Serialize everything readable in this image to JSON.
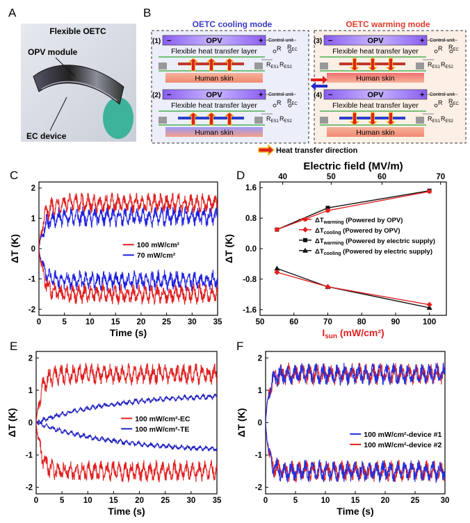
{
  "panels": {
    "A": {
      "letter": "A",
      "title": "Flexible OETC",
      "label_opv": "OPV module",
      "label_ec": "EC device"
    },
    "B": {
      "letter": "B",
      "cooling_title": "OETC cooling mode",
      "warming_title": "OETC warming mode",
      "opv": "OPV",
      "layer": "Flexible heat transfer layer",
      "skin": "Human skin",
      "control": "Control unit",
      "r_label": "R",
      "r_ec": "R",
      "r_ec_sub": "EC",
      "r_es1": "R",
      "r_es1_sub": "ES1",
      "r_es2": "R",
      "r_es2_sub": "ES2",
      "minus": "−",
      "plus": "+",
      "sub_labels": [
        "(1)",
        "(2)",
        "(3)",
        "(4)"
      ],
      "legend": "Heat transfer direction",
      "cooling_color": "#3a3ac8",
      "warming_color": "#e03a2a"
    },
    "C": {
      "letter": "C"
    },
    "D": {
      "letter": "D"
    },
    "E": {
      "letter": "E"
    },
    "F": {
      "letter": "F"
    }
  },
  "chart_data": [
    {
      "panel": "C",
      "type": "line",
      "xlabel": "Time (s)",
      "ylabel": "ΔT (K)",
      "xlim": [
        0,
        35
      ],
      "ylim": [
        -2.2,
        2.2
      ],
      "xticks": [
        0,
        5,
        10,
        15,
        20,
        25,
        30,
        35
      ],
      "yticks": [
        -2,
        -1,
        0,
        1,
        2
      ],
      "legend_position": "center-right",
      "series": [
        {
          "name": "100 mW/cm²",
          "color": "#e02020",
          "plateau": 1.5,
          "tau": 1.0
        },
        {
          "name": "70 mW/cm²",
          "color": "#2020e0",
          "plateau": 1.05,
          "tau": 1.0
        }
      ]
    },
    {
      "panel": "D",
      "type": "line",
      "xlabel": "Isun (mW/cm²)",
      "xlabel_main": "I",
      "xlabel_sub": "sun",
      "xlabel_rest": " (mW/cm²)",
      "top_xlabel": "Electric field (MV/m)",
      "ylabel": "ΔT (K)",
      "xlim": [
        50,
        105
      ],
      "ylim": [
        -1.75,
        1.75
      ],
      "xticks": [
        50,
        60,
        70,
        80,
        90,
        100
      ],
      "yticks": [
        -1.6,
        -0.8,
        0.0,
        0.8,
        1.6
      ],
      "yticklabels": [
        "-1.6",
        "-0.8",
        "0.0",
        "0.8",
        "1.6"
      ],
      "top_ticks": [
        40,
        50,
        60,
        70
      ],
      "top_tick_positions_in_isun": [
        56.7,
        71.0,
        86.0,
        103.3
      ],
      "legend_position": "center",
      "legend": [
        {
          "main": "ΔT",
          "sub": "warming",
          "rest": " (Powered by OPV)",
          "color": "#e02020",
          "marker": "circle"
        },
        {
          "main": "ΔT",
          "sub": "cooling",
          "rest": " (Powered by OPV)",
          "color": "#e02020",
          "marker": "diamond"
        },
        {
          "main": "ΔT",
          "sub": "warming",
          "rest": " (Powered by electric supply)",
          "color": "#111111",
          "marker": "square"
        },
        {
          "main": "ΔT",
          "sub": "cooling",
          "rest": " (Powered by electric supply)",
          "color": "#111111",
          "marker": "triangle"
        }
      ],
      "series": [
        {
          "name": "ΔTwarming (Powered by OPV)",
          "color": "#e02020",
          "marker": "circle",
          "x": [
            55,
            70,
            100
          ],
          "y": [
            0.5,
            1.0,
            1.5
          ]
        },
        {
          "name": "ΔTcooling (Powered by OPV)",
          "color": "#e02020",
          "marker": "diamond",
          "x": [
            55,
            70,
            100
          ],
          "y": [
            -0.62,
            -1.0,
            -1.47
          ]
        },
        {
          "name": "ΔTwarming (Powered by electric supply)",
          "color": "#111111",
          "marker": "square",
          "x": [
            55,
            70,
            100
          ],
          "y": [
            0.5,
            1.07,
            1.52
          ]
        },
        {
          "name": "ΔTcooling (Powered by electric supply)",
          "color": "#111111",
          "marker": "triangle",
          "x": [
            55,
            70,
            100
          ],
          "y": [
            -0.52,
            -1.0,
            -1.55
          ]
        }
      ]
    },
    {
      "panel": "E",
      "type": "line",
      "xlabel": "Time (s)",
      "ylabel": "ΔT (K)",
      "xlim": [
        0,
        35
      ],
      "ylim": [
        -2.2,
        2.2
      ],
      "xticks": [
        0,
        5,
        10,
        15,
        20,
        25,
        30,
        35
      ],
      "yticks": [
        -2,
        -1,
        0,
        1,
        2
      ],
      "legend_position": "center-right",
      "series": [
        {
          "name": "100 mW/cm²-EC",
          "color": "#e02020",
          "plateau": 1.5,
          "tau": 1.0
        },
        {
          "name": "100 mW/cm²-TE",
          "color": "#2020c0",
          "plateau": 0.9,
          "tau": 15.0
        }
      ]
    },
    {
      "panel": "F",
      "type": "line",
      "xlabel": "Time (s)",
      "ylabel": "ΔT (K)",
      "xlim": [
        0,
        30
      ],
      "ylim": [
        -2.2,
        2.2
      ],
      "xticks": [
        0,
        5,
        10,
        15,
        20,
        25,
        30
      ],
      "yticks": [
        -2,
        -1,
        0,
        1,
        2
      ],
      "legend_position": "center-right",
      "series": [
        {
          "name": "100 mW/cm²-device #1",
          "color": "#2030e0",
          "plateau": 1.5,
          "tau": 0.6
        },
        {
          "name": "100 mW/cm²-device #2",
          "color": "#e02020",
          "plateau": 1.5,
          "tau": 0.6
        }
      ]
    }
  ]
}
